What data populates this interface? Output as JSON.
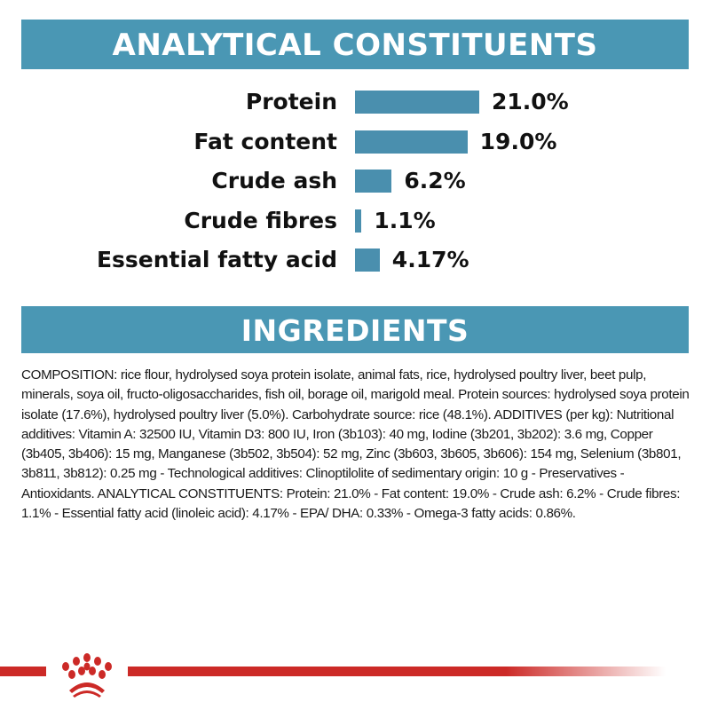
{
  "analytical": {
    "title": "ANALYTICAL CONSTITUENTS",
    "bar_color": "#4a8fae",
    "items": [
      {
        "label": "Protein",
        "value": 21.0,
        "display": "21.0%"
      },
      {
        "label": "Fat content",
        "value": 19.0,
        "display": "19.0%"
      },
      {
        "label": "Crude ash",
        "value": 6.2,
        "display": "6.2%"
      },
      {
        "label": "Crude fibres",
        "value": 1.1,
        "display": "1.1%"
      },
      {
        "label": "Essential fatty acid",
        "value": 4.17,
        "display": "4.17%"
      }
    ]
  },
  "ingredients": {
    "title": "INGREDIENTS",
    "text": "COMPOSITION: rice flour, hydrolysed soya protein isolate, animal fats, rice, hydrolysed poultry liver, beet pulp, minerals, soya oil, fructo-oligosaccharides, fish oil, borage oil, marigold meal. Protein sources: hydrolysed soya protein isolate (17.6%), hydrolysed poultry liver (5.0%). Carbohydrate source: rice (48.1%). ADDITIVES (per kg): Nutritional additives: Vitamin A: 32500 IU, Vitamin D3: 800 IU, Iron (3b103): 40 mg, Iodine (3b201, 3b202): 3.6 mg, Copper (3b405, 3b406): 15 mg, Manganese (3b502, 3b504): 52 mg, Zinc (3b603, 3b605, 3b606): 154 mg, Selenium (3b801, 3b811, 3b812): 0.25 mg - Technological additives: Clinoptilolite of sedimentary origin: 10 g - Preservatives - Antioxidants. ANALYTICAL CONSTITUENTS: Protein: 21.0% - Fat content: 19.0% - Crude ash: 6.2% - Crude fibres: 1.1% - Essential fatty acid (linoleic acid): 4.17% - EPA/ DHA: 0.33% - Omega-3 fatty acids: 0.86%."
  },
  "colors": {
    "banner": "#4a97b4",
    "brand_red": "#cc2a27"
  },
  "footer": {
    "logo_icon": "crown-logo-icon"
  }
}
